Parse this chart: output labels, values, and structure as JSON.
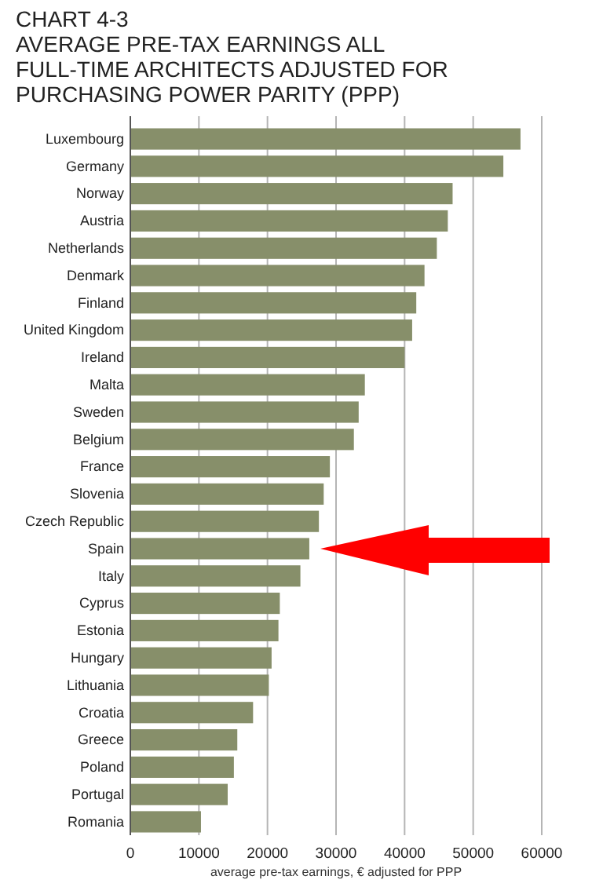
{
  "chart_data": {
    "type": "bar",
    "orientation": "horizontal",
    "title": "CHART 4-3",
    "subtitle": "AVERAGE PRE-TAX EARNINGS ALL FULL-TIME ARCHITECTS ADJUSTED FOR PURCHASING POWER PARITY (PPP)",
    "xlabel": "average pre-tax earnings, € adjusted for PPP",
    "categories": [
      "Luxembourg",
      "Germany",
      "Norway",
      "Austria",
      "Netherlands",
      "Denmark",
      "Finland",
      "United Kingdom",
      "Ireland",
      "Malta",
      "Sweden",
      "Belgium",
      "France",
      "Slovenia",
      "Czech Republic",
      "Spain",
      "Italy",
      "Cyprus",
      "Estonia",
      "Hungary",
      "Lithuania",
      "Croatia",
      "Greece",
      "Poland",
      "Portugal",
      "Romania"
    ],
    "values": [
      56900,
      54400,
      47000,
      46300,
      44700,
      42900,
      41700,
      41100,
      40000,
      34200,
      33300,
      32600,
      29100,
      28200,
      27500,
      26100,
      24800,
      21800,
      21600,
      20600,
      20200,
      17900,
      15600,
      15100,
      14200,
      10300
    ],
    "color": "#878f6a",
    "xlim": [
      0,
      60000
    ],
    "xticks": [
      0,
      10000,
      20000,
      30000,
      40000,
      50000,
      60000
    ],
    "grid": "x"
  }
}
